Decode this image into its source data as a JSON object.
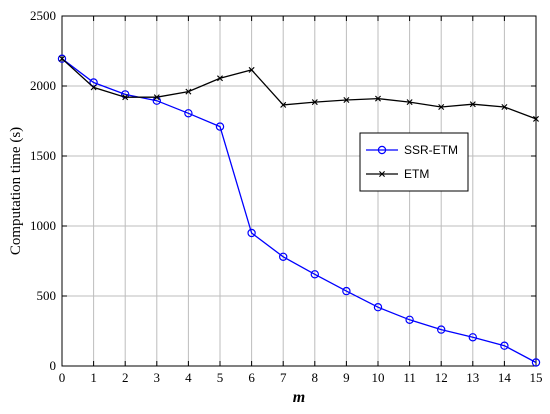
{
  "chart_data": {
    "type": "line",
    "xlabel": "m",
    "ylabel": "Computation time (s)",
    "xlim": [
      0,
      15
    ],
    "ylim": [
      0,
      2500
    ],
    "x_ticks": [
      0,
      1,
      2,
      3,
      4,
      5,
      6,
      7,
      8,
      9,
      10,
      11,
      12,
      13,
      14,
      15
    ],
    "y_ticks": [
      0,
      500,
      1000,
      1500,
      2000,
      2500
    ],
    "grid": true,
    "legend_position": "center-right",
    "x": [
      0,
      1,
      2,
      3,
      4,
      5,
      6,
      7,
      8,
      9,
      10,
      11,
      12,
      13,
      14,
      15
    ],
    "series": [
      {
        "name": "SSR-ETM",
        "color": "#0000ff",
        "marker": "circle",
        "values": [
          2195,
          2025,
          1940,
          1895,
          1805,
          1710,
          950,
          780,
          655,
          535,
          420,
          330,
          260,
          205,
          145,
          25
        ]
      },
      {
        "name": "ETM",
        "color": "#000000",
        "marker": "x",
        "values": [
          2195,
          1990,
          1920,
          1920,
          1960,
          2055,
          2115,
          1865,
          1885,
          1900,
          1910,
          1885,
          1850,
          1870,
          1850,
          1765
        ]
      }
    ]
  }
}
